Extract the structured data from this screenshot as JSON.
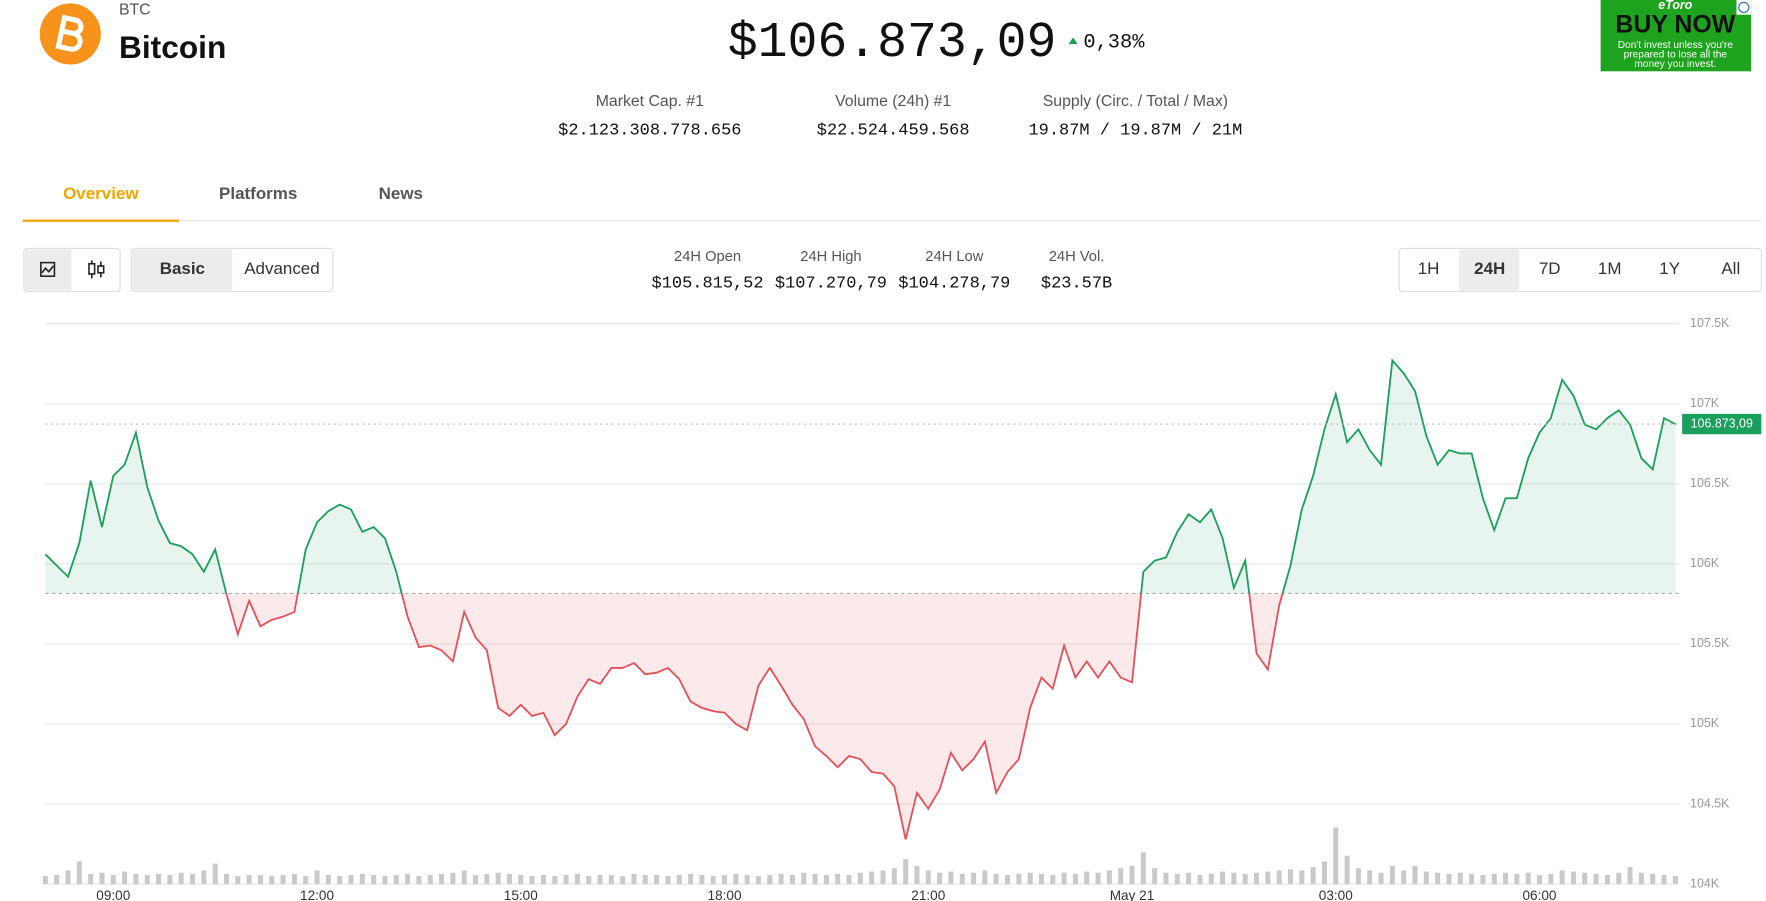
{
  "coin": {
    "symbol": "BTC",
    "name": "Bitcoin"
  },
  "price": {
    "value": "$106.873,09",
    "change": "0,38%"
  },
  "stats": [
    {
      "label": "Market Cap. #1",
      "value": "$2.123.308.778.656"
    },
    {
      "label": "Volume (24h) #1",
      "value": "$22.524.459.568"
    },
    {
      "label": "Supply (Circ. / Total / Max)",
      "value": "19.87M / 19.87M / 21M"
    }
  ],
  "tabs": [
    "Overview",
    "Platforms",
    "News"
  ],
  "view_modes": [
    "Basic",
    "Advanced"
  ],
  "summary": [
    {
      "label": "24H Open",
      "value": "$105.815,52",
      "color": "#111111"
    },
    {
      "label": "24H High",
      "value": "$107.270,79",
      "color": "#1a9f5c"
    },
    {
      "label": "24H Low",
      "value": "$104.278,79",
      "color": "#e4515a"
    },
    {
      "label": "24H Vol.",
      "value": "$23.57B",
      "color": "#111111"
    }
  ],
  "ranges": [
    "1H",
    "24H",
    "7D",
    "1M",
    "1Y",
    "All"
  ],
  "ad": {
    "brand": "eToro",
    "cta": "BUY NOW",
    "disclaimer": [
      "Don't invest unless you're",
      "prepared to lose all the",
      "money you invest."
    ]
  },
  "chart_data": {
    "type": "line",
    "x": [
      "May 20 08:00",
      "May 20 08:10",
      "May 20 08:20",
      "May 20 08:30",
      "May 20 08:40",
      "May 20 08:50",
      "May 20 09:00",
      "May 20 09:10",
      "May 20 09:20",
      "May 20 09:30",
      "May 20 09:40",
      "May 20 09:50",
      "May 20 10:00",
      "May 20 10:10",
      "May 20 10:20",
      "May 20 10:30",
      "May 20 10:40",
      "May 20 10:50",
      "May 20 11:00",
      "May 20 11:10",
      "May 20 11:20",
      "May 20 11:30",
      "May 20 11:40",
      "May 20 11:50",
      "May 20 12:00",
      "May 20 12:10",
      "May 20 12:20",
      "May 20 12:30",
      "May 20 12:40",
      "May 20 12:50",
      "May 20 13:00",
      "May 20 13:10",
      "May 20 13:20",
      "May 20 13:30",
      "May 20 13:40",
      "May 20 13:50",
      "May 20 14:00",
      "May 20 14:10",
      "May 20 14:20",
      "May 20 14:30",
      "May 20 14:40",
      "May 20 14:50",
      "May 20 15:00",
      "May 20 15:10",
      "May 20 15:20",
      "May 20 15:30",
      "May 20 15:40",
      "May 20 15:50",
      "May 20 16:00",
      "May 20 16:10",
      "May 20 16:20",
      "May 20 16:30",
      "May 20 16:40",
      "May 20 16:50",
      "May 20 17:00",
      "May 20 17:10",
      "May 20 17:20",
      "May 20 17:30",
      "May 20 17:40",
      "May 20 17:50",
      "May 20 18:00",
      "May 20 18:10",
      "May 20 18:20",
      "May 20 18:30",
      "May 20 18:40",
      "May 20 18:50",
      "May 20 19:00",
      "May 20 19:10",
      "May 20 19:20",
      "May 20 19:30",
      "May 20 19:40",
      "May 20 19:50",
      "May 20 20:00",
      "May 20 20:10",
      "May 20 20:20",
      "May 20 20:30",
      "May 20 20:40",
      "May 20 20:50",
      "May 20 21:00",
      "May 20 21:10",
      "May 20 21:20",
      "May 20 21:30",
      "May 20 21:40",
      "May 20 21:50",
      "May 20 22:00",
      "May 20 22:10",
      "May 20 22:20",
      "May 20 22:30",
      "May 20 22:40",
      "May 20 22:50",
      "May 20 23:00",
      "May 20 23:10",
      "May 20 23:20",
      "May 20 23:30",
      "May 20 23:40",
      "May 20 23:50",
      "May 21 00:00",
      "May 21 00:10",
      "May 21 00:20",
      "May 21 00:30",
      "May 21 00:40",
      "May 21 00:50",
      "May 21 01:00",
      "May 21 01:10",
      "May 21 01:20",
      "May 21 01:30",
      "May 21 01:40",
      "May 21 01:50",
      "May 21 02:00",
      "May 21 02:10",
      "May 21 02:20",
      "May 21 02:30",
      "May 21 02:40",
      "May 21 02:50",
      "May 21 03:00",
      "May 21 03:10",
      "May 21 03:20",
      "May 21 03:30",
      "May 21 03:40",
      "May 21 03:50",
      "May 21 04:00",
      "May 21 04:10",
      "May 21 04:20",
      "May 21 04:30",
      "May 21 04:40",
      "May 21 04:50",
      "May 21 05:00",
      "May 21 05:10",
      "May 21 05:20",
      "May 21 05:30",
      "May 21 05:40",
      "May 21 05:50",
      "May 21 06:00",
      "May 21 06:10",
      "May 21 06:20",
      "May 21 06:30",
      "May 21 06:40",
      "May 21 06:50",
      "May 21 07:00",
      "May 21 07:10",
      "May 21 07:20",
      "May 21 07:30",
      "May 21 07:40",
      "May 21 07:50",
      "May 21 08:00"
    ],
    "values": [
      106060,
      105990,
      105920,
      106130,
      106520,
      106230,
      106550,
      106620,
      106820,
      106480,
      106270,
      106130,
      106110,
      106060,
      105950,
      106090,
      105810,
      105560,
      105770,
      105610,
      105650,
      105670,
      105700,
      106090,
      106260,
      106330,
      106370,
      106340,
      106200,
      106230,
      106160,
      105950,
      105670,
      105480,
      105490,
      105460,
      105390,
      105700,
      105540,
      105460,
      105100,
      105050,
      105120,
      105050,
      105070,
      104930,
      105000,
      105170,
      105280,
      105250,
      105350,
      105350,
      105380,
      105310,
      105320,
      105350,
      105280,
      105140,
      105100,
      105080,
      105070,
      105000,
      104960,
      105240,
      105350,
      105240,
      105120,
      105030,
      104860,
      104800,
      104730,
      104800,
      104780,
      104700,
      104690,
      104610,
      104278.79,
      104570,
      104470,
      104590,
      104820,
      104710,
      104780,
      104890,
      104570,
      104700,
      104780,
      105100,
      105290,
      105220,
      105490,
      105290,
      105390,
      105290,
      105390,
      105290,
      105260,
      105950,
      106020,
      106040,
      106200,
      106310,
      106260,
      106340,
      106160,
      105850,
      106020,
      105440,
      105340,
      105740,
      105990,
      106340,
      106550,
      106840,
      107060,
      106760,
      106840,
      106710,
      106620,
      107270.79,
      107190,
      107080,
      106800,
      106620,
      106710,
      106690,
      106690,
      106410,
      106210,
      106410,
      106410,
      106660,
      106820,
      106910,
      107150,
      107050,
      106870,
      106840,
      106910,
      106960,
      106870,
      106660,
      106590,
      106910,
      106873.09
    ],
    "volume": [
      7,
      8,
      12,
      20,
      9,
      10,
      8,
      11,
      9,
      8,
      9,
      8,
      10,
      9,
      12,
      18,
      9,
      7,
      8,
      8,
      7,
      8,
      9,
      7,
      12,
      8,
      7,
      8,
      9,
      8,
      7,
      8,
      9,
      7,
      8,
      9,
      10,
      12,
      8,
      9,
      10,
      9,
      8,
      7,
      8,
      7,
      8,
      9,
      7,
      8,
      8,
      7,
      9,
      8,
      8,
      7,
      8,
      9,
      8,
      7,
      8,
      9,
      8,
      7,
      8,
      9,
      8,
      10,
      9,
      8,
      9,
      8,
      10,
      11,
      12,
      14,
      22,
      16,
      12,
      10,
      11,
      9,
      10,
      12,
      9,
      8,
      9,
      10,
      9,
      8,
      10,
      9,
      11,
      10,
      12,
      14,
      16,
      28,
      14,
      10,
      9,
      10,
      8,
      9,
      11,
      10,
      9,
      10,
      11,
      12,
      13,
      12,
      15,
      20,
      50,
      25,
      14,
      12,
      10,
      16,
      12,
      16,
      11,
      10,
      9,
      10,
      9,
      8,
      9,
      10,
      9,
      10,
      8,
      9,
      12,
      11,
      10,
      9,
      8,
      10,
      15,
      10,
      9,
      8,
      7
    ],
    "baseline": 105815.52,
    "current": {
      "value": 106873.09,
      "label": "106.873,09"
    },
    "up_color": "#1a9f5c",
    "down_color": "#e4515a",
    "volume_color": "#c9c9c9",
    "xlim": [
      "May 20 08:00",
      "May 21 08:00"
    ],
    "xticks": [
      {
        "value": "May 20 09:00",
        "label": "09:00"
      },
      {
        "value": "May 20 12:00",
        "label": "12:00"
      },
      {
        "value": "May 20 15:00",
        "label": "15:00"
      },
      {
        "value": "May 20 18:00",
        "label": "18:00"
      },
      {
        "value": "May 20 21:00",
        "label": "21:00"
      },
      {
        "value": "May 21 00:00",
        "label": "May 21"
      },
      {
        "value": "May 21 03:00",
        "label": "03:00"
      },
      {
        "value": "May 21 06:00",
        "label": "06:00"
      }
    ],
    "ylim": [
      104000,
      107500
    ],
    "yticks": [
      {
        "value": 104000,
        "label": "104K"
      },
      {
        "value": 104500,
        "label": "104.5K"
      },
      {
        "value": 105000,
        "label": "105K"
      },
      {
        "value": 105500,
        "label": "105.5K"
      },
      {
        "value": 106000,
        "label": "106K"
      },
      {
        "value": 106500,
        "label": "106.5K"
      },
      {
        "value": 107000,
        "label": "107K"
      },
      {
        "value": 107500,
        "label": "107.5K"
      }
    ],
    "grid": true
  }
}
